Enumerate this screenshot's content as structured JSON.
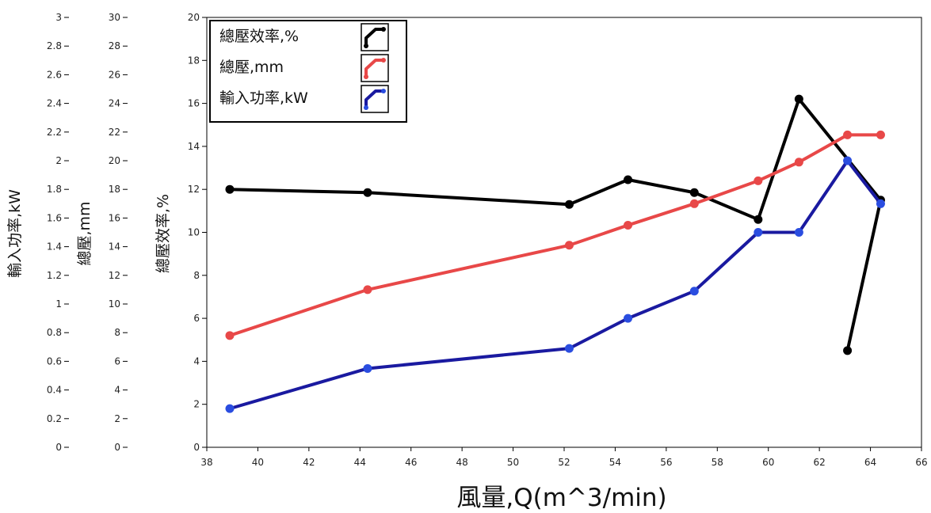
{
  "chart_data": {
    "type": "line",
    "xlabel": "風量,Q(m^3/min)",
    "xlim": [
      38,
      66
    ],
    "x_ticks": [
      "38",
      "40",
      "42",
      "44",
      "46",
      "48",
      "50",
      "52",
      "54",
      "56",
      "58",
      "60",
      "62",
      "64",
      "66"
    ],
    "axes": [
      {
        "id": "power",
        "label": "輸入功率,kW",
        "range": [
          0,
          3
        ],
        "ticks": [
          "0",
          "0.2",
          "0.4",
          "0.6",
          "0.8",
          "1",
          "1.2",
          "1.4",
          "1.6",
          "1.8",
          "2",
          "2.2",
          "2.4",
          "2.6",
          "2.8",
          "3"
        ]
      },
      {
        "id": "pressure",
        "label": "總壓,mm",
        "range": [
          0,
          30
        ],
        "ticks": [
          "0",
          "2",
          "4",
          "6",
          "8",
          "10",
          "12",
          "14",
          "16",
          "18",
          "20",
          "22",
          "24",
          "26",
          "28",
          "30"
        ]
      },
      {
        "id": "efficiency",
        "label": "總壓效率,%",
        "range": [
          0,
          20
        ],
        "ticks": [
          "0",
          "2",
          "4",
          "6",
          "8",
          "10",
          "12",
          "14",
          "16",
          "18",
          "20"
        ]
      }
    ],
    "legend_position": "top-left",
    "series": [
      {
        "name": "總壓效率,%",
        "color": "#000000",
        "axis": "efficiency",
        "x": [
          38.9,
          44.3,
          52.2,
          54.5,
          57.1,
          59.6,
          61.2,
          64.4,
          63.1
        ],
        "y": [
          12.0,
          11.85,
          11.3,
          12.45,
          11.85,
          10.6,
          16.2,
          11.5,
          4.5
        ]
      },
      {
        "name": "總壓,mm",
        "color": "#e84848",
        "axis": "pressure",
        "x": [
          38.9,
          44.3,
          52.2,
          54.5,
          57.1,
          59.6,
          61.2,
          63.1,
          64.4
        ],
        "y": [
          7.8,
          11.0,
          14.1,
          15.5,
          17.0,
          18.6,
          19.9,
          21.8,
          21.8
        ]
      },
      {
        "name": "輸入功率,kW",
        "color": "#1a1aa0",
        "marker_color": "#2a4de0",
        "axis": "power",
        "x": [
          38.9,
          44.3,
          52.2,
          54.5,
          57.1,
          59.6,
          61.2,
          63.1,
          64.4
        ],
        "y": [
          0.27,
          0.55,
          0.69,
          0.9,
          1.09,
          1.5,
          1.5,
          2.0,
          1.7
        ]
      }
    ]
  }
}
